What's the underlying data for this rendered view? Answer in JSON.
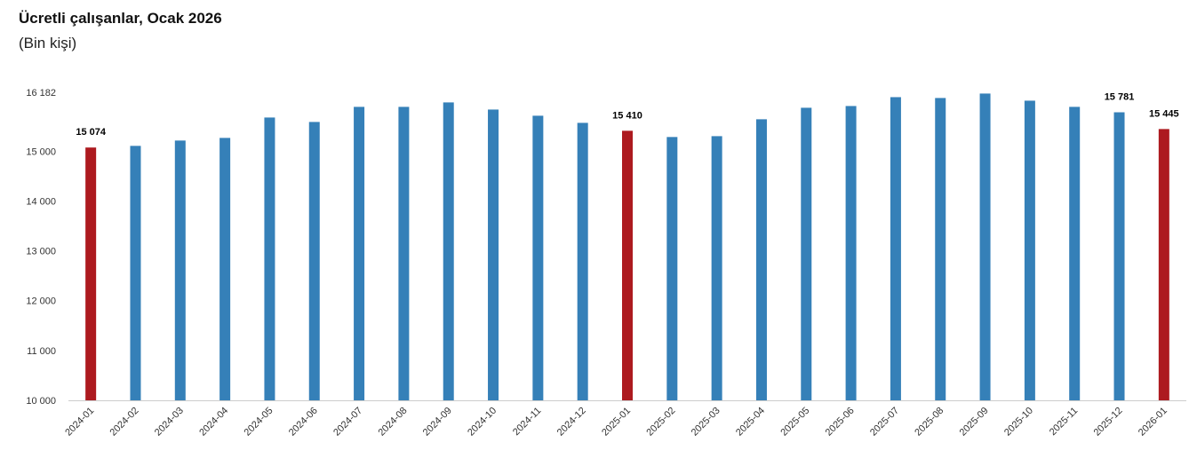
{
  "chart_data": {
    "type": "bar",
    "title": "Ücretli çalışanlar, Ocak 2026",
    "subtitle": "(Bin kişi)",
    "categories": [
      "2024-01",
      "2024-02",
      "2024-03",
      "2024-04",
      "2024-05",
      "2024-06",
      "2024-07",
      "2024-08",
      "2024-09",
      "2024-10",
      "2024-11",
      "2024-12",
      "2025-01",
      "2025-02",
      "2025-03",
      "2025-04",
      "2025-05",
      "2025-06",
      "2025-07",
      "2025-08",
      "2025-09",
      "2025-10",
      "2025-11",
      "2025-12",
      "2026-01"
    ],
    "values": [
      15074,
      15107,
      15214,
      15267,
      15676,
      15587,
      15890,
      15890,
      15979,
      15836,
      15712,
      15569,
      15410,
      15285,
      15302,
      15641,
      15872,
      15907,
      16085,
      16068,
      16157,
      16014,
      15890,
      15781,
      15445
    ],
    "value_labels": [
      "15 074",
      null,
      null,
      null,
      null,
      null,
      null,
      null,
      null,
      null,
      null,
      null,
      "15 410",
      null,
      null,
      null,
      null,
      null,
      null,
      null,
      null,
      null,
      null,
      "15 781",
      "15 445"
    ],
    "colors": [
      "#ad1a1f",
      "#3580b8",
      "#3580b8",
      "#3580b8",
      "#3580b8",
      "#3580b8",
      "#3580b8",
      "#3580b8",
      "#3580b8",
      "#3580b8",
      "#3580b8",
      "#3580b8",
      "#ad1a1f",
      "#3580b8",
      "#3580b8",
      "#3580b8",
      "#3580b8",
      "#3580b8",
      "#3580b8",
      "#3580b8",
      "#3580b8",
      "#3580b8",
      "#3580b8",
      "#3580b8",
      "#ad1a1f"
    ],
    "ylim": [
      10000,
      16182
    ],
    "yticks": [
      {
        "value": 10000,
        "label": "10 000"
      },
      {
        "value": 11000,
        "label": "11 000"
      },
      {
        "value": 12000,
        "label": "12 000"
      },
      {
        "value": 13000,
        "label": "13 000"
      },
      {
        "value": 14000,
        "label": "14 000"
      },
      {
        "value": 15000,
        "label": "15 000"
      },
      {
        "value": 16182,
        "label": "16 182"
      }
    ],
    "grid": false
  }
}
